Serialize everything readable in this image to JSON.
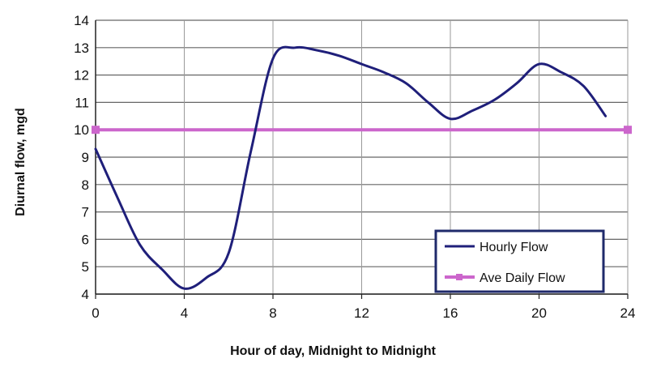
{
  "chart_data": {
    "type": "line",
    "xlabel": "Hour of day, Midnight to Midnight",
    "ylabel": "Diurnal flow, mgd",
    "xlim": [
      0,
      24
    ],
    "ylim": [
      4,
      14
    ],
    "xticks": [
      0,
      4,
      8,
      12,
      16,
      20,
      24
    ],
    "yticks": [
      4,
      5,
      6,
      7,
      8,
      9,
      10,
      11,
      12,
      13,
      14
    ],
    "grid": true,
    "legend_position": "bottom-right",
    "series": [
      {
        "name": "Hourly Flow",
        "color": "#1f1f7a",
        "x": [
          0,
          1,
          2,
          3,
          4,
          5,
          6,
          7,
          8,
          9,
          10,
          11,
          12,
          13,
          14,
          15,
          16,
          17,
          18,
          19,
          20,
          21,
          22,
          23
        ],
        "y": [
          9.3,
          7.5,
          5.8,
          4.9,
          4.2,
          4.6,
          5.5,
          9.2,
          12.6,
          13.0,
          12.9,
          12.7,
          12.4,
          12.1,
          11.7,
          11.0,
          10.4,
          10.7,
          11.1,
          11.7,
          12.4,
          12.1,
          11.6,
          10.5
        ]
      },
      {
        "name": "Ave Daily Flow",
        "color": "#cc66cc",
        "x": [
          0,
          24
        ],
        "y": [
          10,
          10
        ]
      }
    ]
  }
}
